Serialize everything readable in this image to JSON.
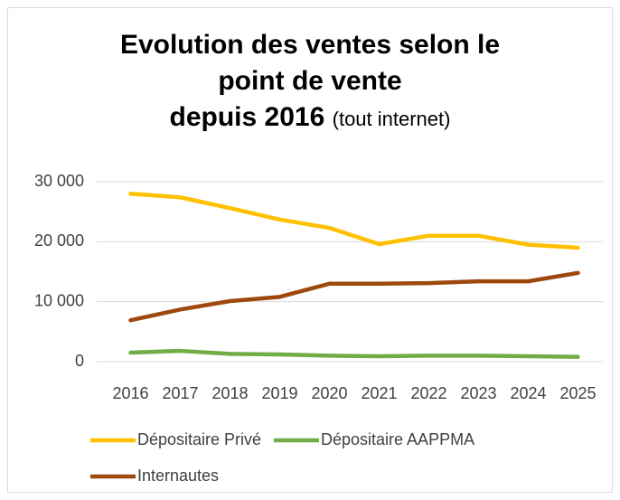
{
  "chart_data": {
    "type": "line",
    "title": "Evolution des ventes selon le\npoint de vente\ndepuis 2016",
    "subtitle": "(tout internet)",
    "categories": [
      "2016",
      "2017",
      "2018",
      "2019",
      "2020",
      "2021",
      "2022",
      "2023",
      "2024",
      "2025"
    ],
    "series": [
      {
        "name": "Dépositaire Privé",
        "color": "#ffc000",
        "values": [
          28000,
          27400,
          25600,
          23700,
          22300,
          19600,
          21000,
          21000,
          19500,
          19000
        ]
      },
      {
        "name": "Dépositaire AAPPMA",
        "color": "#70ad47",
        "values": [
          1500,
          1800,
          1300,
          1200,
          1000,
          900,
          1000,
          1000,
          900,
          800
        ]
      },
      {
        "name": "Internautes",
        "color": "#9e480e",
        "values": [
          6900,
          8700,
          10100,
          10800,
          13000,
          13000,
          13100,
          13400,
          13400,
          14800
        ]
      }
    ],
    "ylim": [
      0,
      30000
    ],
    "yticks": [
      0,
      {
        "value": 10000,
        "label": "10 000"
      },
      {
        "value": 20000,
        "label": "20 000"
      },
      {
        "value": 30000,
        "label": "30 000"
      }
    ],
    "grid": true,
    "legend": "bottom"
  }
}
